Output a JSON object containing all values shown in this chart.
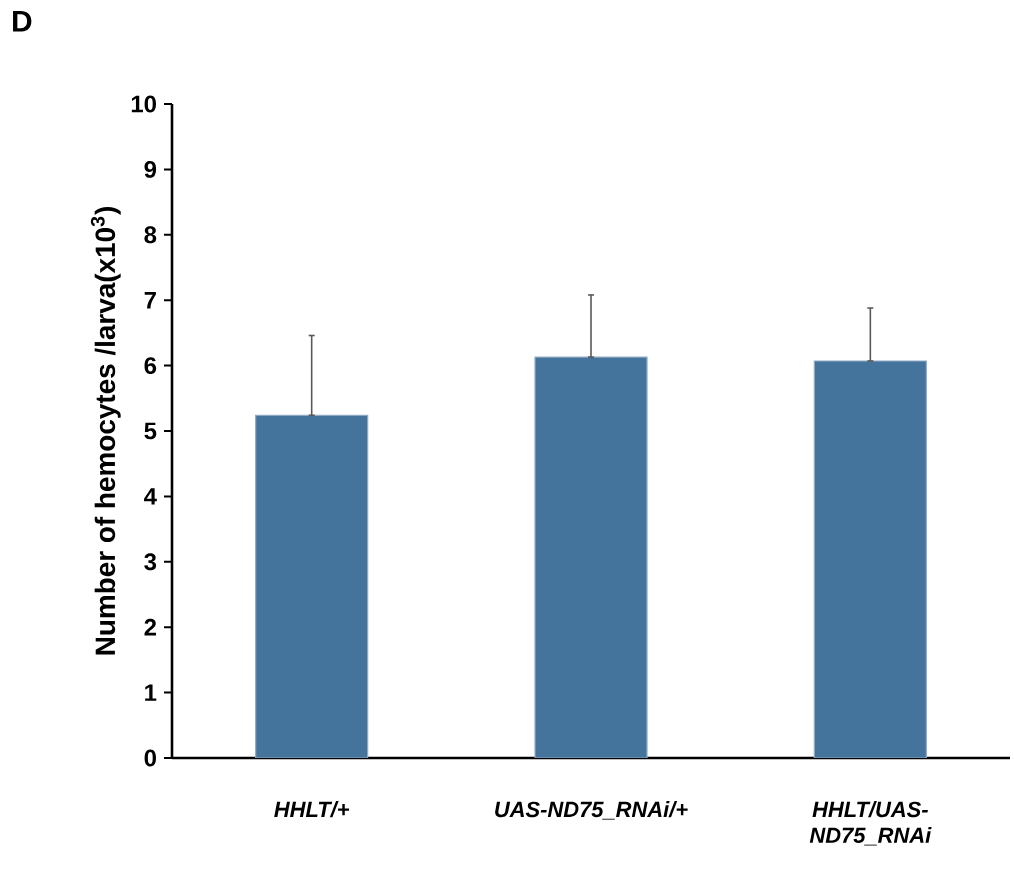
{
  "chart_data": {
    "type": "bar",
    "ylabel": "Number of hemocytes /larva(x10$^{3}$)",
    "categories": [
      "HHLT/+",
      "UAS-ND75_RNAi/+",
      "HHLT/UAS-ND75_RNAi"
    ],
    "values": [
      5.24,
      6.13,
      6.07
    ],
    "errors": [
      [
        5.24,
        6.46
      ],
      [
        6.13,
        7.08
      ],
      [
        6.07,
        6.88
      ]
    ],
    "color": "#44739c",
    "ylim": [
      0,
      10
    ],
    "yticks": [
      0,
      1,
      2,
      3,
      4,
      5,
      6,
      7,
      8,
      9,
      10
    ],
    "grid": false,
    "annotations": [
      "D"
    ]
  }
}
